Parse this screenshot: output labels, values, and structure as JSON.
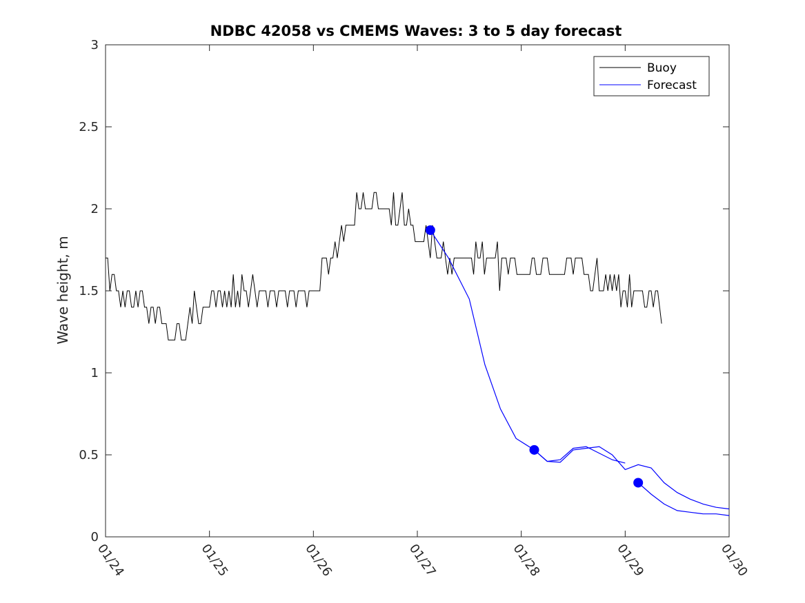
{
  "chart_data": {
    "type": "line",
    "title": "NDBC 42058 vs CMEMS Waves: 3 to 5 day forecast",
    "xlabel": "",
    "ylabel": "Wave height, m",
    "xlim": [
      0,
      6
    ],
    "ylim": [
      0,
      3
    ],
    "x_unit": "days since 01/24 00:00",
    "xticks": [
      0,
      1,
      2,
      3,
      4,
      5,
      6
    ],
    "xtick_labels": [
      "01/24",
      "01/25",
      "01/26",
      "01/27",
      "01/28",
      "01/29",
      "01/30"
    ],
    "yticks": [
      0,
      0.5,
      1,
      1.5,
      2,
      2.5,
      3
    ],
    "ytick_labels": [
      "0",
      "0.5",
      "1",
      "1.5",
      "2",
      "2.5",
      "3"
    ],
    "legend": {
      "position": "top-right",
      "entries": [
        "Buoy",
        "Forecast"
      ]
    },
    "colors": {
      "buoy": "#000000",
      "forecast": "#0000ff"
    },
    "buoy_knots": [
      [
        0.0,
        1.8
      ],
      [
        0.05,
        1.55
      ],
      [
        0.1,
        1.55
      ],
      [
        0.17,
        1.5
      ],
      [
        0.2,
        1.5
      ],
      [
        0.3,
        1.5
      ],
      [
        0.35,
        1.4
      ],
      [
        0.45,
        1.45
      ],
      [
        0.5,
        1.3
      ],
      [
        0.6,
        1.25
      ],
      [
        0.7,
        1.22
      ],
      [
        0.8,
        1.28
      ],
      [
        0.9,
        1.35
      ],
      [
        1.0,
        1.4
      ],
      [
        1.1,
        1.45
      ],
      [
        1.2,
        1.47
      ],
      [
        1.3,
        1.5
      ],
      [
        1.4,
        1.52
      ],
      [
        1.5,
        1.55
      ],
      [
        1.6,
        1.5
      ],
      [
        1.7,
        1.45
      ],
      [
        1.8,
        1.47
      ],
      [
        1.9,
        1.5
      ],
      [
        2.0,
        1.52
      ],
      [
        2.1,
        1.65
      ],
      [
        2.2,
        1.75
      ],
      [
        2.3,
        1.85
      ],
      [
        2.4,
        2.0
      ],
      [
        2.5,
        2.05
      ],
      [
        2.6,
        2.05
      ],
      [
        2.7,
        2.0
      ],
      [
        2.8,
        2.0
      ],
      [
        2.9,
        1.95
      ],
      [
        3.0,
        1.85
      ],
      [
        3.1,
        1.8
      ],
      [
        3.2,
        1.75
      ],
      [
        3.3,
        1.68
      ],
      [
        3.4,
        1.68
      ],
      [
        3.5,
        1.7
      ],
      [
        3.6,
        1.7
      ],
      [
        3.7,
        1.7
      ],
      [
        3.8,
        1.68
      ],
      [
        3.9,
        1.67
      ],
      [
        4.0,
        1.67
      ],
      [
        4.1,
        1.65
      ],
      [
        4.2,
        1.65
      ],
      [
        4.3,
        1.65
      ],
      [
        4.4,
        1.63
      ],
      [
        4.5,
        1.62
      ],
      [
        4.6,
        1.63
      ],
      [
        4.7,
        1.6
      ],
      [
        4.8,
        1.55
      ],
      [
        4.9,
        1.55
      ],
      [
        5.0,
        1.5
      ],
      [
        5.1,
        1.45
      ],
      [
        5.2,
        1.45
      ],
      [
        5.3,
        1.45
      ],
      [
        5.35,
        1.3
      ]
    ],
    "series": [
      {
        "name": "Forecast",
        "x": [
          3.125,
          3.3,
          3.5,
          3.65,
          3.8,
          3.95,
          4.125,
          4.25,
          4.375,
          4.5,
          4.625,
          4.75,
          4.875,
          5.0
        ],
        "y": [
          1.87,
          1.7,
          1.45,
          1.05,
          0.78,
          0.6,
          0.53,
          0.46,
          0.47,
          0.54,
          0.55,
          0.51,
          0.47,
          0.45
        ]
      },
      {
        "name": "Forecast",
        "x": [
          4.125,
          4.25,
          4.375,
          4.5,
          4.625,
          4.75,
          4.875,
          5.0,
          5.125,
          5.25,
          5.375,
          5.5,
          5.625,
          5.75,
          5.875,
          6.0
        ],
        "y": [
          0.53,
          0.46,
          0.455,
          0.53,
          0.54,
          0.55,
          0.5,
          0.41,
          0.44,
          0.42,
          0.33,
          0.27,
          0.23,
          0.2,
          0.18,
          0.17
        ]
      },
      {
        "name": "Forecast",
        "x": [
          5.125,
          5.25,
          5.375,
          5.5,
          5.625,
          5.75,
          5.875,
          6.0
        ],
        "y": [
          0.33,
          0.26,
          0.2,
          0.16,
          0.15,
          0.14,
          0.14,
          0.13
        ]
      }
    ],
    "markers": {
      "x": [
        3.125,
        4.125,
        5.125
      ],
      "y": [
        1.87,
        0.53,
        0.33
      ]
    }
  }
}
